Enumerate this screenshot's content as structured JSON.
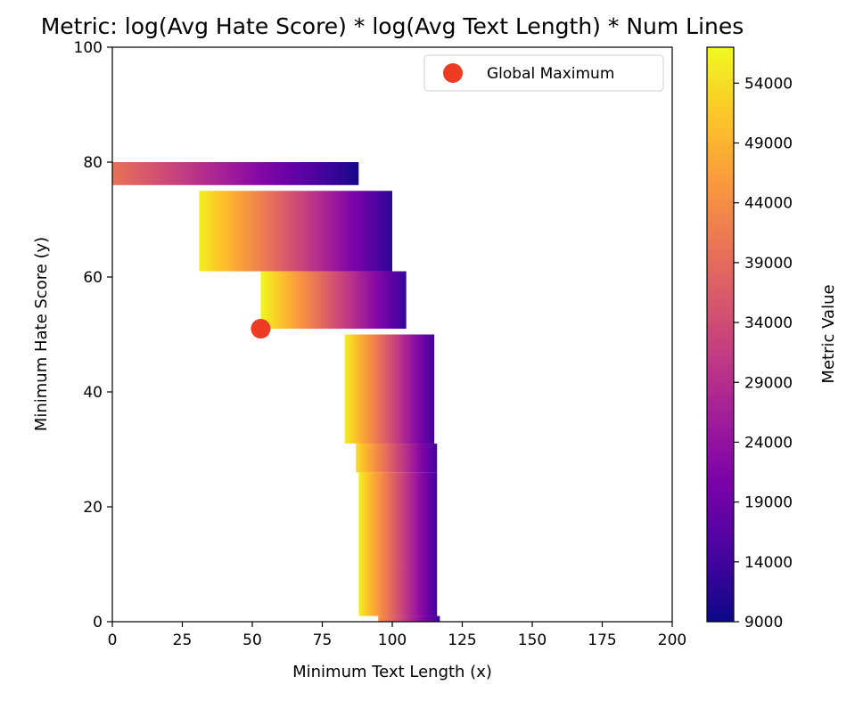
{
  "chart_data": {
    "type": "heatmap",
    "title": "Metric: log(Avg Hate Score) * log(Avg Text Length) * Num Lines",
    "xlabel": "Minimum Text Length (x)",
    "ylabel": "Minimum Hate Score (y)",
    "xlim": [
      0,
      200
    ],
    "ylim": [
      0,
      100
    ],
    "xticks": [
      0,
      25,
      50,
      75,
      100,
      125,
      150,
      175,
      200
    ],
    "yticks": [
      0,
      20,
      40,
      60,
      80,
      100
    ],
    "grid": false,
    "colormap": "plasma",
    "colorbar": {
      "label": "Metric Value",
      "min": 9000,
      "max": 57000,
      "ticks": [
        9000,
        14000,
        19000,
        24000,
        29000,
        34000,
        39000,
        44000,
        49000,
        54000
      ]
    },
    "regions": [
      {
        "y_range": [
          76,
          80
        ],
        "x_range": [
          0,
          88
        ],
        "value_at_x_start": 40000,
        "value_at_x_end": 10000
      },
      {
        "y_range": [
          61,
          75
        ],
        "x_range": [
          31,
          100
        ],
        "value_at_x_start": 56000,
        "value_at_x_end": 12000
      },
      {
        "y_range": [
          51,
          61
        ],
        "x_range": [
          53,
          105
        ],
        "value_at_x_start": 57000,
        "value_at_x_end": 13000
      },
      {
        "y_range": [
          31,
          50
        ],
        "x_range": [
          83,
          115
        ],
        "value_at_x_start": 56000,
        "value_at_x_end": 14000
      },
      {
        "y_range": [
          26,
          31
        ],
        "x_range": [
          87,
          116
        ],
        "value_at_x_start": 54000,
        "value_at_x_end": 14000
      },
      {
        "y_range": [
          1,
          26
        ],
        "x_range": [
          88,
          116
        ],
        "value_at_x_start": 56000,
        "value_at_x_end": 14000
      },
      {
        "y_range": [
          0,
          1
        ],
        "x_range": [
          95,
          117
        ],
        "value_at_x_start": 45000,
        "value_at_x_end": 13000
      }
    ],
    "global_maximum": {
      "x": 53,
      "y": 51
    },
    "legend": {
      "placement": "top-right",
      "entries": [
        "Global Maximum"
      ]
    },
    "colors": {
      "maximum_marker": "#ee3b24",
      "axis": "#000000"
    }
  }
}
